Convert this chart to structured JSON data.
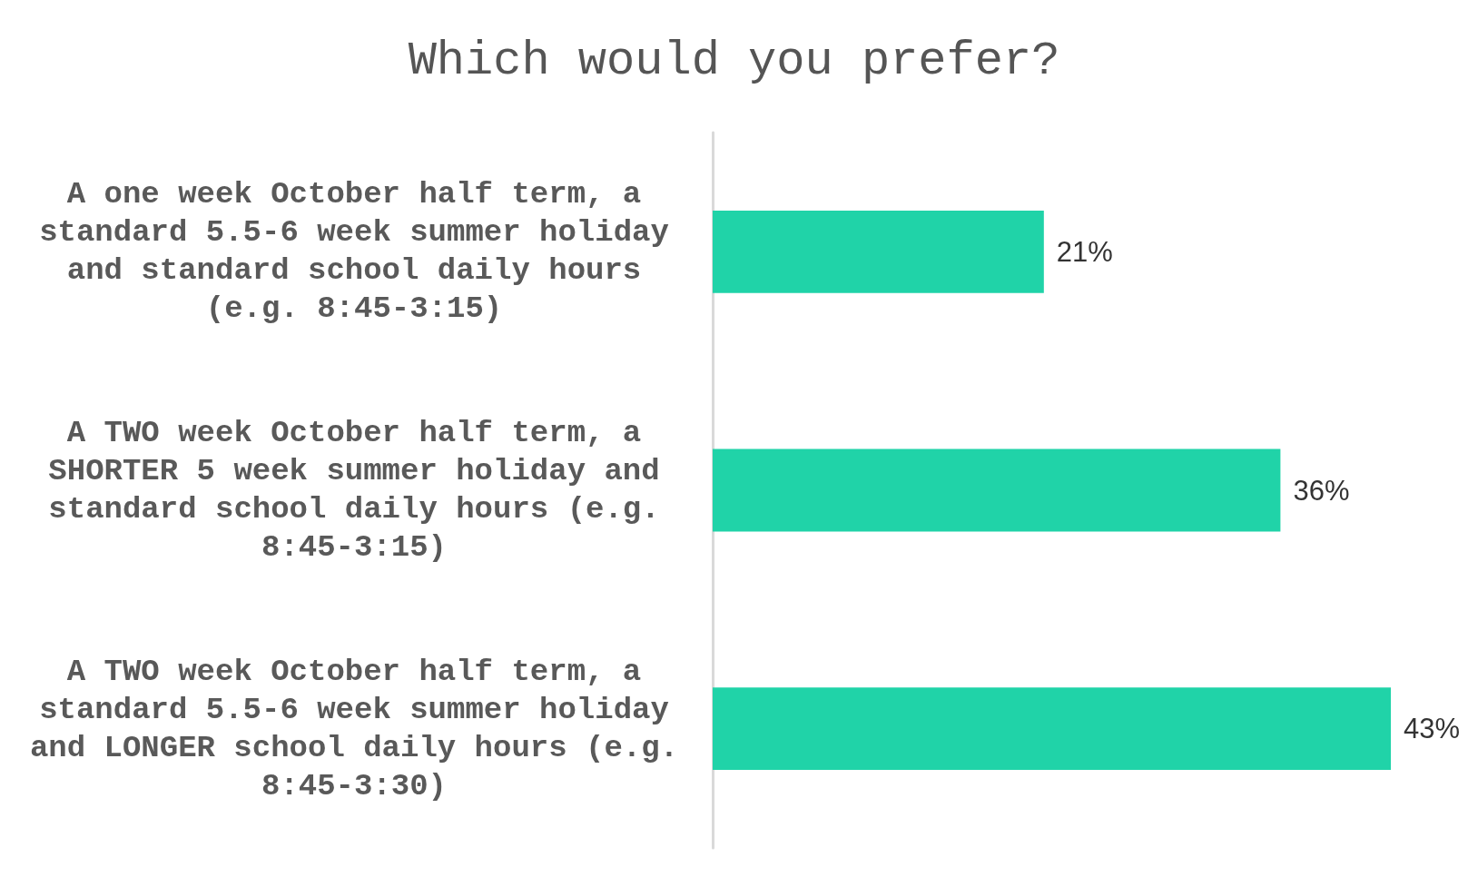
{
  "chart_data": {
    "type": "bar",
    "orientation": "horizontal",
    "title": "Which would you prefer?",
    "categories": [
      "A one week October half term, a standard 5.5-6 week summer holiday and standard school daily hours (e.g. 8:45-3:15)",
      "A TWO week October half term, a SHORTER 5 week summer holiday and standard school daily hours (e.g. 8:45-3:15)",
      "A TWO week October half term, a standard 5.5-6 week summer holiday and LONGER school daily hours (e.g. 8:45-3:30)"
    ],
    "values": [
      21,
      36,
      43
    ],
    "value_labels": [
      "21%",
      "36%",
      "43%"
    ],
    "color": "#20d3a8",
    "tick_labels": "y"
  }
}
